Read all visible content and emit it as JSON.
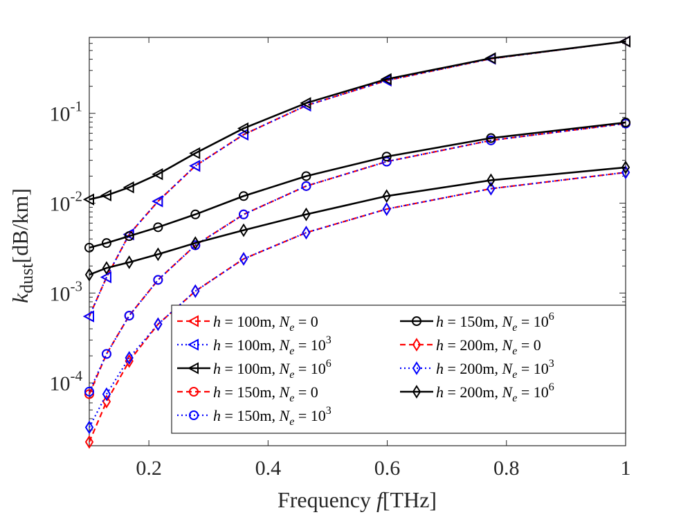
{
  "chart_data": {
    "type": "line",
    "yscale": "log",
    "xlabel": "Frequency f[THz]",
    "ylabel": "k_dust[dB/km]",
    "xlim": [
      0.1,
      1.0
    ],
    "ylim": [
      2e-05,
      0.7
    ],
    "grid": false,
    "legend_position": "bottom-right",
    "x_ticks": [
      0.2,
      0.4,
      0.6,
      0.8,
      1.0
    ],
    "x_tick_labels": [
      "0.2",
      "0.4",
      "0.6",
      "0.8",
      "1"
    ],
    "y_ticks": [
      0.0001,
      0.001,
      0.01,
      0.1
    ],
    "y_tick_labels": [
      {
        "base": "10",
        "exp": "-4"
      },
      {
        "base": "10",
        "exp": "-3"
      },
      {
        "base": "10",
        "exp": "-2"
      },
      {
        "base": "10",
        "exp": "-1"
      }
    ],
    "x": [
      0.1,
      0.129,
      0.167,
      0.2154,
      0.278,
      0.359,
      0.464,
      0.599,
      0.774,
      1.0
    ],
    "series": [
      {
        "name": "h = 100m, N_e = 0",
        "legend": {
          "h": "100",
          "ne": "0",
          "ne_exp": ""
        },
        "color": "#ff0000",
        "dash": "8,5",
        "marker": "triangle-left",
        "values": [
          0.00055,
          0.0015,
          0.0045,
          0.0105,
          0.026,
          0.058,
          0.122,
          0.232,
          0.405,
          0.63
        ]
      },
      {
        "name": "h = 100m, N_e = 10^3",
        "legend": {
          "h": "100",
          "ne": "10",
          "ne_exp": "3"
        },
        "color": "#0000ff",
        "dash": "2,4",
        "marker": "triangle-left",
        "values": [
          0.00055,
          0.0015,
          0.0045,
          0.0105,
          0.026,
          0.058,
          0.122,
          0.232,
          0.405,
          0.63
        ]
      },
      {
        "name": "h = 100m, N_e = 10^6",
        "legend": {
          "h": "100",
          "ne": "10",
          "ne_exp": "6"
        },
        "color": "#000000",
        "dash": "",
        "marker": "triangle-left",
        "values": [
          0.011,
          0.0122,
          0.015,
          0.021,
          0.036,
          0.068,
          0.13,
          0.24,
          0.41,
          0.63
        ]
      },
      {
        "name": "h = 150m, N_e = 0",
        "legend": {
          "h": "150",
          "ne": "0",
          "ne_exp": ""
        },
        "color": "#ff0000",
        "dash": "8,5",
        "marker": "circle",
        "values": [
          7.5e-05,
          0.00021,
          0.00056,
          0.0014,
          0.0034,
          0.0075,
          0.0155,
          0.029,
          0.05,
          0.077
        ]
      },
      {
        "name": "h = 150m, N_e = 10^3",
        "legend": {
          "h": "150",
          "ne": "10",
          "ne_exp": "3"
        },
        "color": "#0000ff",
        "dash": "2,4",
        "marker": "circle",
        "values": [
          8e-05,
          0.00021,
          0.00056,
          0.0014,
          0.0034,
          0.0075,
          0.0155,
          0.029,
          0.05,
          0.077
        ]
      },
      {
        "name": "h = 150m, N_e = 10^6",
        "legend": {
          "h": "150",
          "ne": "10",
          "ne_exp": "6"
        },
        "color": "#000000",
        "dash": "",
        "marker": "circle",
        "values": [
          0.0032,
          0.0036,
          0.0043,
          0.0054,
          0.0075,
          0.012,
          0.02,
          0.033,
          0.053,
          0.079
        ]
      },
      {
        "name": "h = 200m, N_e = 0",
        "legend": {
          "h": "200",
          "ne": "0",
          "ne_exp": ""
        },
        "color": "#ff0000",
        "dash": "8,5",
        "marker": "diamond",
        "values": [
          2.2e-05,
          6.2e-05,
          0.000175,
          0.00045,
          0.00105,
          0.0024,
          0.0047,
          0.0086,
          0.0145,
          0.022
        ]
      },
      {
        "name": "h = 200m, N_e = 10^3",
        "legend": {
          "h": "200",
          "ne": "10",
          "ne_exp": "3"
        },
        "color": "#0000ff",
        "dash": "2,4",
        "marker": "diamond",
        "values": [
          3.2e-05,
          7.5e-05,
          0.00019,
          0.00045,
          0.00105,
          0.0024,
          0.0047,
          0.0086,
          0.0145,
          0.022
        ]
      },
      {
        "name": "h = 200m, N_e = 10^6",
        "legend": {
          "h": "200",
          "ne": "10",
          "ne_exp": "6"
        },
        "color": "#000000",
        "dash": "",
        "marker": "diamond",
        "values": [
          0.0016,
          0.0019,
          0.0022,
          0.0027,
          0.0036,
          0.005,
          0.0075,
          0.012,
          0.018,
          0.025
        ]
      }
    ]
  }
}
